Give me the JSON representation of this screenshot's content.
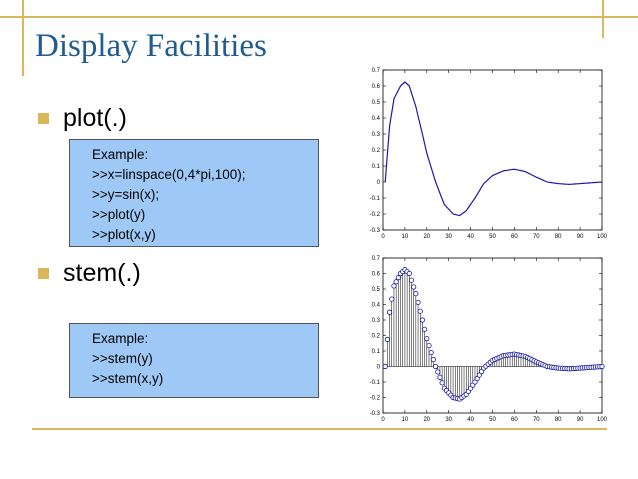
{
  "slide": {
    "title": "Display Facilities",
    "bullets": [
      {
        "label": "plot(.)"
      },
      {
        "label": "stem(.)"
      }
    ],
    "examples": [
      {
        "lines": [
          "Example:",
          ">>x=linspace(0,4*pi,100);",
          ">>y=sin(x);",
          ">>plot(y)",
          ">>plot(x,y)"
        ]
      },
      {
        "lines": [
          "Example:",
          ">>stem(y)",
          ">>stem(x,y)"
        ]
      }
    ],
    "colors": {
      "accent": "#d9b85c",
      "title": "#1f5b8f",
      "example_bg": "#9ec8f5",
      "series": "#1a1aa8"
    }
  },
  "chart_data": [
    {
      "type": "line",
      "title": "",
      "xlabel": "",
      "ylabel": "",
      "xlim": [
        0,
        100
      ],
      "ylim": [
        -0.3,
        0.7
      ],
      "xticks": [
        0,
        10,
        20,
        30,
        40,
        50,
        60,
        70,
        80,
        90,
        100
      ],
      "yticks": [
        -0.3,
        -0.2,
        -0.1,
        0,
        0.1,
        0.2,
        0.3,
        0.4,
        0.5,
        0.6,
        0.7
      ],
      "grid": false,
      "series": [
        {
          "x": [
            1,
            3,
            5,
            8,
            10,
            12,
            15,
            18,
            20,
            24,
            28,
            32,
            35,
            38,
            42,
            46,
            50,
            55,
            60,
            65,
            70,
            75,
            80,
            85,
            90,
            95,
            100
          ],
          "y": [
            0.0,
            0.35,
            0.52,
            0.6,
            0.625,
            0.6,
            0.47,
            0.3,
            0.18,
            0.0,
            -0.14,
            -0.2,
            -0.21,
            -0.18,
            -0.1,
            -0.01,
            0.04,
            0.07,
            0.08,
            0.065,
            0.03,
            0.0,
            -0.01,
            -0.015,
            -0.01,
            -0.005,
            0.0
          ]
        }
      ]
    },
    {
      "type": "stem",
      "title": "",
      "xlabel": "",
      "ylabel": "",
      "xlim": [
        0,
        100
      ],
      "ylim": [
        -0.3,
        0.7
      ],
      "xticks": [
        0,
        10,
        20,
        30,
        40,
        50,
        60,
        70,
        80,
        90,
        100
      ],
      "yticks": [
        -0.3,
        -0.2,
        -0.1,
        0,
        0.1,
        0.2,
        0.3,
        0.4,
        0.5,
        0.6,
        0.7
      ],
      "grid": false,
      "series": [
        {
          "x": [
            1,
            3,
            5,
            8,
            10,
            12,
            15,
            18,
            20,
            24,
            28,
            32,
            35,
            38,
            42,
            46,
            50,
            55,
            60,
            65,
            70,
            75,
            80,
            85,
            90,
            95,
            100
          ],
          "y": [
            0.0,
            0.35,
            0.52,
            0.6,
            0.625,
            0.6,
            0.47,
            0.3,
            0.18,
            0.0,
            -0.14,
            -0.2,
            -0.21,
            -0.18,
            -0.1,
            -0.01,
            0.04,
            0.07,
            0.08,
            0.065,
            0.03,
            0.0,
            -0.01,
            -0.015,
            -0.01,
            -0.005,
            0.0
          ]
        }
      ]
    }
  ]
}
